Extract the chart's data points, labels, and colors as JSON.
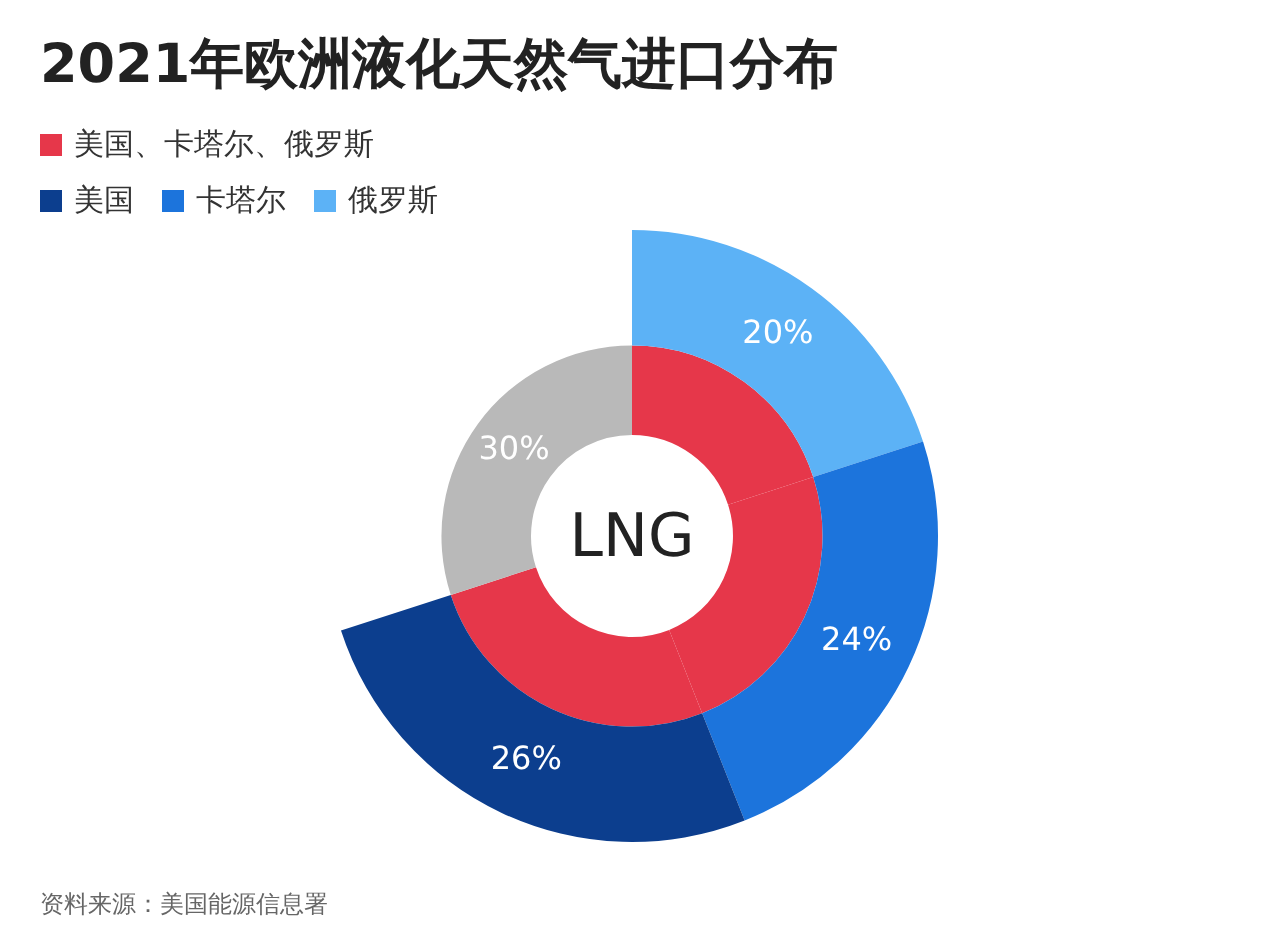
{
  "chart_data": {
    "type": "donut",
    "title": "2021年欧洲液化天然气进口分布",
    "categories": [
      "俄罗斯",
      "卡塔尔",
      "美国",
      null
    ],
    "series": [
      {
        "name": "美国、卡塔尔、俄罗斯",
        "values": [
          20,
          24,
          26,
          30
        ],
        "colors": [
          "#e6374a",
          "#e6374a",
          "#e6374a",
          "#b9b9b9"
        ],
        "value_labels": [
          null,
          null,
          null,
          "30%"
        ]
      },
      {
        "name": null,
        "values": [
          20,
          24,
          26,
          null
        ],
        "colors": [
          "#5cb2f6",
          "#1c74dc",
          "#0c3e8e",
          null
        ],
        "value_labels": [
          "20%",
          "24%",
          "26%",
          null
        ]
      }
    ],
    "legend": "top left",
    "annotations": [
      "LNG",
      "资料来源：美国能源信息署"
    ]
  }
}
